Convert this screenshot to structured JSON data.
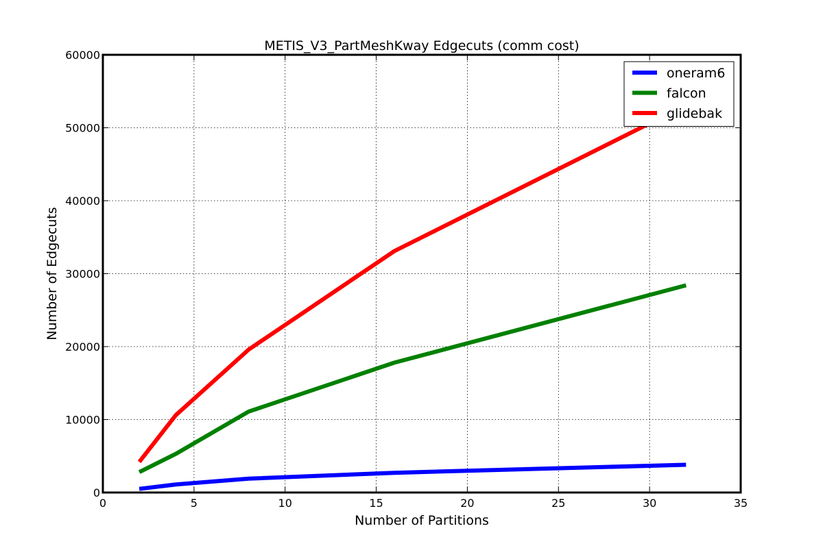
{
  "chart_data": {
    "type": "line",
    "title": "METIS_V3_PartMeshKway Edgecuts (comm cost)",
    "xlabel": "Number of Partitions",
    "ylabel": "Number of Edgecuts",
    "xlim": [
      0,
      35
    ],
    "ylim": [
      0,
      60000
    ],
    "xticks": [
      0,
      5,
      10,
      15,
      20,
      25,
      30,
      35
    ],
    "yticks": [
      0,
      10000,
      20000,
      30000,
      40000,
      50000,
      60000
    ],
    "grid": true,
    "legend_position": "top-right",
    "x": [
      2,
      4,
      8,
      16,
      32
    ],
    "series": [
      {
        "name": "oneram6",
        "color": "#0000ff",
        "values": [
          500,
          1100,
          1900,
          2700,
          3800
        ]
      },
      {
        "name": "falcon",
        "color": "#008000",
        "values": [
          2800,
          5300,
          11100,
          17800,
          28400
        ]
      },
      {
        "name": "glidebak",
        "color": "#ff0000",
        "values": [
          4200,
          10600,
          19600,
          33100,
          53100
        ]
      }
    ]
  }
}
